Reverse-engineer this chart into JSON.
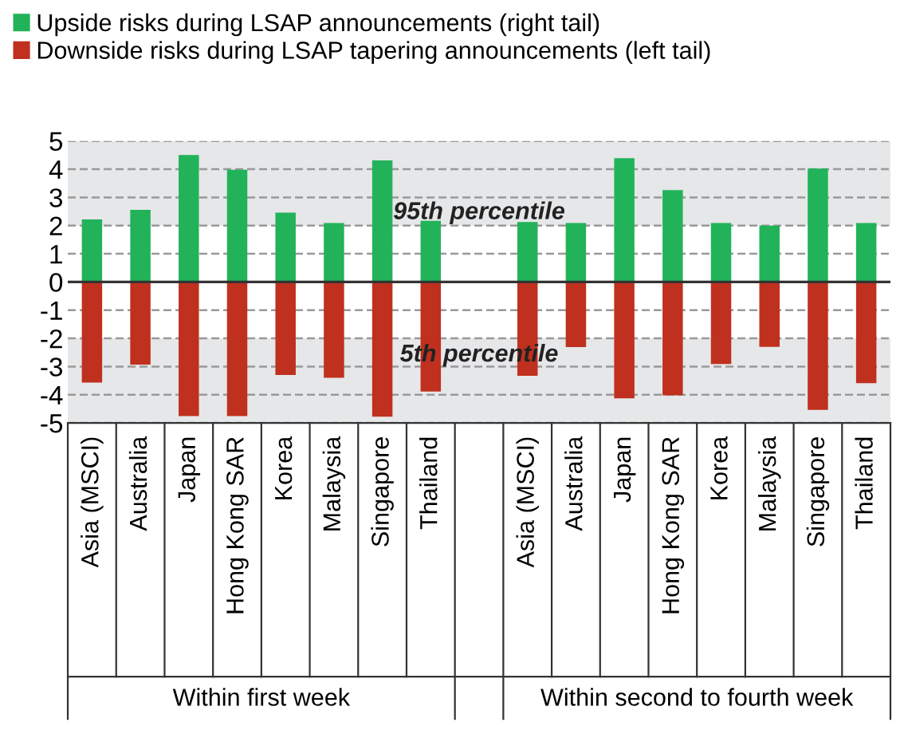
{
  "chart_data": {
    "type": "bar",
    "stacked": true,
    "categories": [
      "Asia (MSCI)",
      "Australia",
      "Japan",
      "Hong Kong SAR",
      "Korea",
      "Malaysia",
      "Singapore",
      "Thailand",
      null,
      "Asia (MSCI)",
      "Australia",
      "Japan",
      "Hong Kong SAR",
      "Korea",
      "Malaysia",
      "Singapore",
      "Thailand"
    ],
    "series": [
      {
        "name": "Upside risks during LSAP announcements (right tail)",
        "color": "#22b35a",
        "values": [
          2.22,
          2.56,
          4.5,
          3.98,
          2.46,
          2.09,
          4.31,
          2.17,
          null,
          2.13,
          2.09,
          4.39,
          3.26,
          2.09,
          2.0,
          4.02,
          2.09
        ]
      },
      {
        "name": "Downside risks during LSAP tapering announcements (left tail)",
        "color": "#c0301e",
        "values": [
          -3.57,
          -2.93,
          -4.76,
          -4.76,
          -3.3,
          -3.4,
          -4.78,
          -3.89,
          null,
          -3.33,
          -2.31,
          -4.13,
          -4.02,
          -2.91,
          -2.3,
          -4.54,
          -3.59
        ]
      }
    ],
    "ylim": [
      -5,
      5
    ],
    "yticks": [
      -5,
      -4,
      -3,
      -2,
      -1,
      0,
      1,
      2,
      3,
      4,
      5
    ],
    "grid": "y",
    "legend": "top left",
    "bands": [
      {
        "axis": "y",
        "from": 2,
        "to": 5,
        "label": "95th percentile",
        "color": "#e6e7e9"
      },
      {
        "axis": "y",
        "from": -5,
        "to": -2,
        "label": "5th percentile",
        "color": "#e6e7e9"
      }
    ],
    "annotations": [
      "Within first week",
      "Within second to fourth week"
    ]
  }
}
